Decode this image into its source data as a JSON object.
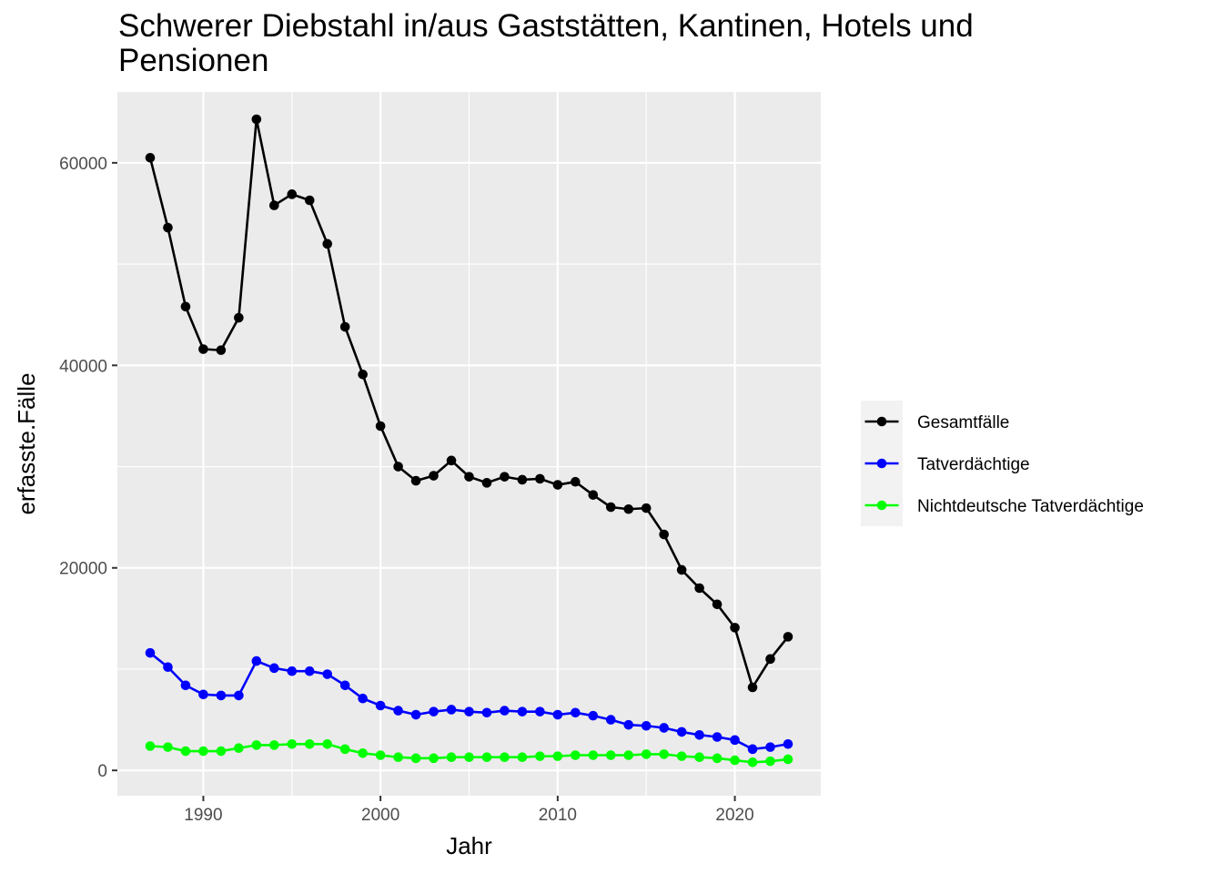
{
  "chart_data": {
    "type": "line",
    "title": "Schwerer Diebstahl in/aus Gaststätten, Kantinen, Hotels und Pensionen",
    "xlabel": "Jahr",
    "ylabel": "erfasste.Fälle",
    "xlim": [
      1985.15,
      2024.85
    ],
    "ylim": [
      -2500,
      67000
    ],
    "x_ticks": [
      1990,
      2000,
      2010,
      2020
    ],
    "y_ticks": [
      0,
      20000,
      40000,
      60000
    ],
    "grid": true,
    "legend_position": "right",
    "x": [
      1987,
      1988,
      1989,
      1990,
      1991,
      1992,
      1993,
      1994,
      1995,
      1996,
      1997,
      1998,
      1999,
      2000,
      2001,
      2002,
      2003,
      2004,
      2005,
      2006,
      2007,
      2008,
      2009,
      2010,
      2011,
      2012,
      2013,
      2014,
      2015,
      2016,
      2017,
      2018,
      2019,
      2020,
      2021,
      2022,
      2023
    ],
    "series": [
      {
        "name": "Gesamtfälle",
        "color": "#000000",
        "values": [
          60500,
          53600,
          45800,
          41600,
          41500,
          44700,
          64300,
          55800,
          56900,
          56300,
          52000,
          43800,
          39100,
          34000,
          30000,
          28600,
          29100,
          30600,
          29000,
          28400,
          29000,
          28700,
          28800,
          28200,
          28500,
          27200,
          26000,
          25800,
          25900,
          23300,
          19800,
          18000,
          16400,
          14100,
          8200,
          11000,
          13200
        ]
      },
      {
        "name": "Tatverdächtige",
        "color": "#0000ff",
        "values": [
          11600,
          10200,
          8400,
          7500,
          7400,
          7400,
          10800,
          10100,
          9800,
          9800,
          9500,
          8400,
          7100,
          6400,
          5900,
          5500,
          5800,
          6000,
          5800,
          5700,
          5900,
          5800,
          5800,
          5500,
          5700,
          5400,
          5000,
          4500,
          4400,
          4200,
          3800,
          3500,
          3300,
          3000,
          2100,
          2300,
          2600
        ]
      },
      {
        "name": "Nichtdeutsche Tatverdächtige",
        "color": "#00ff00",
        "values": [
          2400,
          2300,
          1900,
          1900,
          1900,
          2200,
          2500,
          2500,
          2600,
          2600,
          2600,
          2100,
          1700,
          1500,
          1300,
          1200,
          1200,
          1300,
          1300,
          1300,
          1300,
          1300,
          1400,
          1400,
          1500,
          1500,
          1500,
          1500,
          1600,
          1600,
          1400,
          1300,
          1200,
          1000,
          800,
          900,
          1100
        ]
      }
    ]
  }
}
